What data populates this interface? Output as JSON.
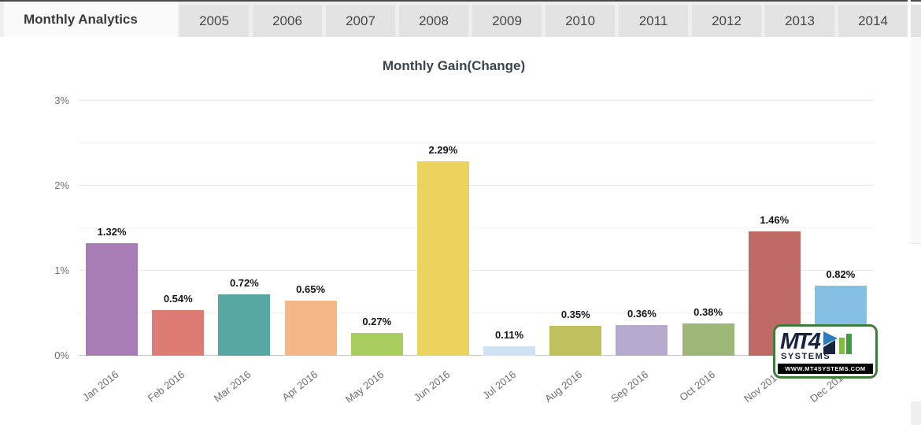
{
  "tab_bar": {
    "active_tab": "Monthly Analytics",
    "year_tabs": [
      "2005",
      "2006",
      "2007",
      "2008",
      "2009",
      "2010",
      "2011",
      "2012",
      "2013",
      "2014"
    ]
  },
  "chart_data": {
    "type": "bar",
    "title": "Monthly Gain(Change)",
    "categories": [
      "Jan 2016",
      "Feb 2016",
      "Mar 2016",
      "Apr 2016",
      "May 2016",
      "Jun 2016",
      "Jul 2016",
      "Aug 2016",
      "Sep 2016",
      "Oct 2016",
      "Nov 2016",
      "Dec 2016"
    ],
    "values": [
      1.32,
      0.54,
      0.72,
      0.65,
      0.27,
      2.29,
      0.11,
      0.35,
      0.36,
      0.38,
      1.46,
      0.82
    ],
    "value_labels": [
      "1.32%",
      "0.54%",
      "0.72%",
      "0.65%",
      "0.27%",
      "2.29%",
      "0.11%",
      "0.35%",
      "0.36%",
      "0.38%",
      "1.46%",
      "0.82%"
    ],
    "bar_colors": [
      "#a87cb5",
      "#dc7c75",
      "#57a8a3",
      "#f4b787",
      "#a9ce5d",
      "#ecd35e",
      "#cfe2f3",
      "#bfc25c",
      "#b5a9ce",
      "#9db778",
      "#bf6a64",
      "#85bfe4"
    ],
    "ylim": [
      0,
      3
    ],
    "yticks": [
      {
        "value": 0,
        "label": "0%"
      },
      {
        "value": 1,
        "label": "1%"
      },
      {
        "value": 2,
        "label": "2%"
      },
      {
        "value": 3,
        "label": "3%"
      }
    ],
    "minor_gridlines": [
      0.5,
      1.5,
      2.5
    ],
    "grid": true,
    "legend": false,
    "xlabel": "",
    "ylabel": ""
  },
  "watermark": {
    "brand": "MT4",
    "name": "SYSTEMS",
    "url": "WWW.MT4SYSTEMS.COM",
    "border_color": "#3e7d3b",
    "text_color": "#162440"
  },
  "colors": {
    "baseline": "#c9c9c9",
    "grid_major": "#e8e8e8",
    "grid_minor": "#f4f4f4",
    "tab_active_bg": "#fbfbfb",
    "tab_bg": "#e3e3e3",
    "title_text": "#3b4550"
  }
}
